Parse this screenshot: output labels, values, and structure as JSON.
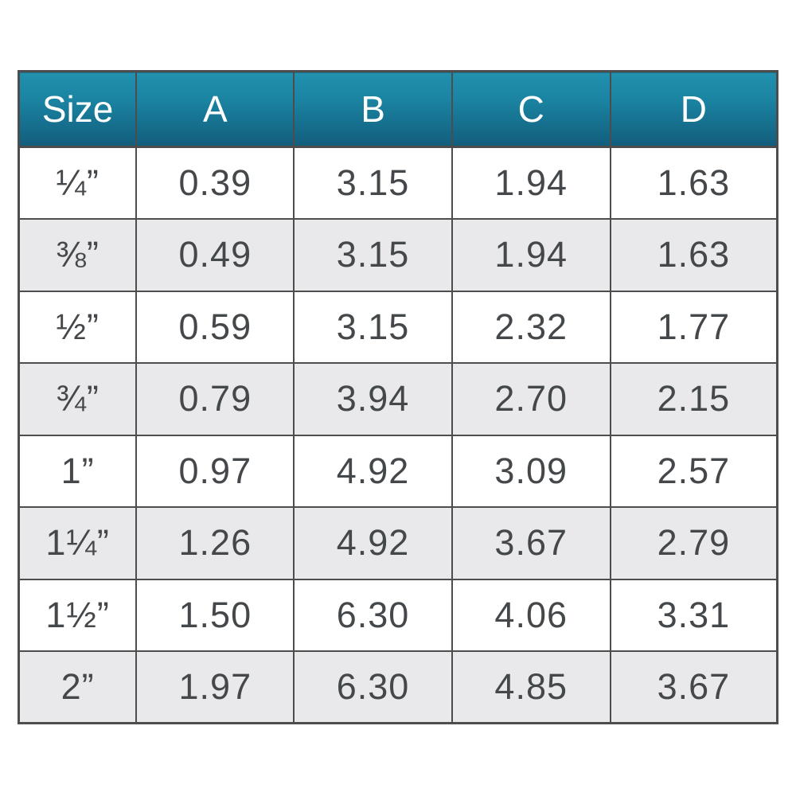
{
  "colors": {
    "header_top": "#2191ad",
    "header_mid": "#1a83a1",
    "header_bottom": "#125d7c",
    "border": "#4d4d4d",
    "alt_row": "#e9e9eb",
    "text": "#45484b",
    "header_text": "#ffffff",
    "page_bg": "#ffffff"
  },
  "chart_data": {
    "type": "table",
    "title": "",
    "columns": [
      "Size",
      "A",
      "B",
      "C",
      "D"
    ],
    "rows": [
      [
        "¼”",
        "0.39",
        "3.15",
        "1.94",
        "1.63"
      ],
      [
        "⅜”",
        "0.49",
        "3.15",
        "1.94",
        "1.63"
      ],
      [
        "½”",
        "0.59",
        "3.15",
        "2.32",
        "1.77"
      ],
      [
        "¾”",
        "0.79",
        "3.94",
        "2.70",
        "2.15"
      ],
      [
        "1”",
        "0.97",
        "4.92",
        "3.09",
        "2.57"
      ],
      [
        "1¼”",
        "1.26",
        "4.92",
        "3.67",
        "2.79"
      ],
      [
        "1½”",
        "1.50",
        "6.30",
        "4.06",
        "3.31"
      ],
      [
        "2”",
        "1.97",
        "6.30",
        "4.85",
        "3.67"
      ]
    ],
    "layout": {
      "header_background": "teal vertical gradient",
      "row_striping": "even rows light gray",
      "grid": true
    }
  }
}
